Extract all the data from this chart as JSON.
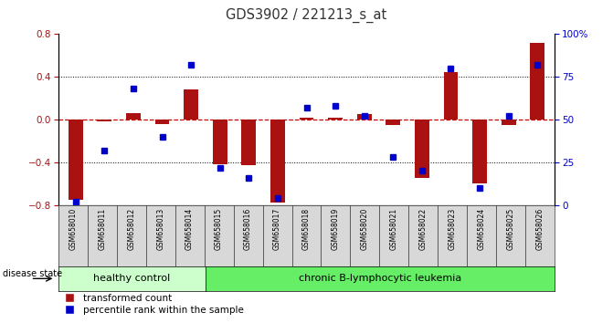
{
  "title": "GDS3902 / 221213_s_at",
  "samples": [
    "GSM658010",
    "GSM658011",
    "GSM658012",
    "GSM658013",
    "GSM658014",
    "GSM658015",
    "GSM658016",
    "GSM658017",
    "GSM658018",
    "GSM658019",
    "GSM658020",
    "GSM658021",
    "GSM658022",
    "GSM658023",
    "GSM658024",
    "GSM658025",
    "GSM658026"
  ],
  "red_bars": [
    -0.75,
    -0.02,
    0.06,
    -0.04,
    0.28,
    -0.42,
    -0.43,
    -0.78,
    0.02,
    0.02,
    0.05,
    -0.05,
    -0.55,
    0.44,
    -0.6,
    -0.05,
    0.72
  ],
  "blue_dots_pct": [
    2,
    32,
    68,
    40,
    82,
    22,
    16,
    4,
    57,
    58,
    52,
    28,
    20,
    80,
    10,
    52,
    82
  ],
  "ylim": [
    -0.8,
    0.8
  ],
  "yticks_left": [
    -0.8,
    -0.4,
    0.0,
    0.4,
    0.8
  ],
  "yticks_right": [
    0,
    25,
    50,
    75,
    100
  ],
  "healthy_count": 5,
  "disease_label": "disease state",
  "healthy_label": "healthy control",
  "leukemia_label": "chronic B-lymphocytic leukemia",
  "legend_red": "transformed count",
  "legend_blue": "percentile rank within the sample",
  "bar_color": "#aa1111",
  "dot_color": "#0000cc",
  "healthy_bg": "#ccffcc",
  "leukemia_bg": "#66ee66",
  "tickbg_color": "#d8d8d8",
  "zero_line_color": "#cc0000",
  "dot_line_color": "#888888",
  "title_color": "#333333",
  "bar_width": 0.5
}
